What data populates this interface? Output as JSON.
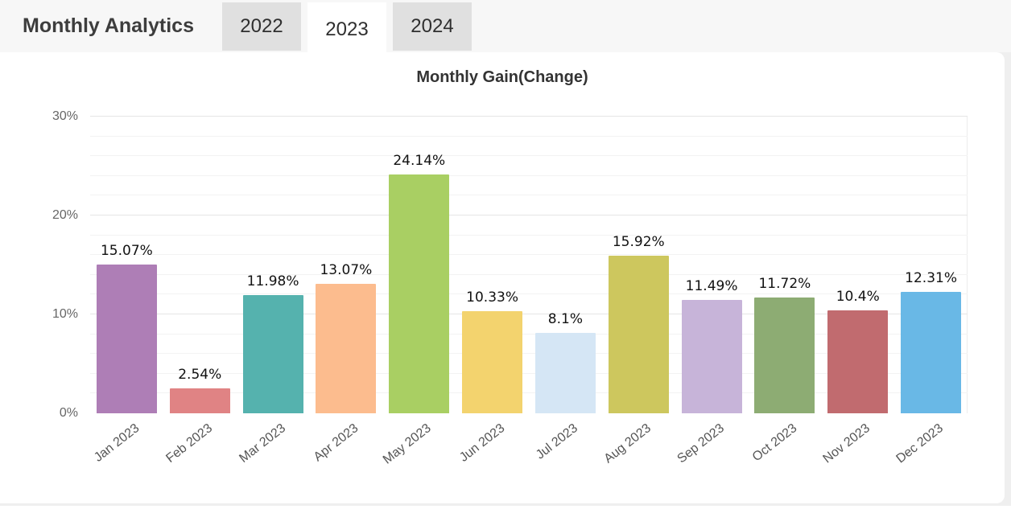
{
  "header": {
    "title": "Monthly Analytics",
    "tabs": [
      {
        "label": "2022",
        "active": false
      },
      {
        "label": "2023",
        "active": true
      },
      {
        "label": "2024",
        "active": false
      }
    ]
  },
  "chart_data": {
    "type": "bar",
    "title": "Monthly Gain(Change)",
    "categories": [
      "Jan 2023",
      "Feb 2023",
      "Mar 2023",
      "Apr 2023",
      "May 2023",
      "Jun 2023",
      "Jul 2023",
      "Aug 2023",
      "Sep 2023",
      "Oct 2023",
      "Nov 2023",
      "Dec 2023"
    ],
    "values": [
      15.07,
      2.54,
      11.98,
      13.07,
      24.14,
      10.33,
      8.1,
      15.92,
      11.49,
      11.72,
      10.4,
      12.31
    ],
    "value_labels": [
      "15.07%",
      "2.54%",
      "11.98%",
      "13.07%",
      "24.14%",
      "10.33%",
      "8.1%",
      "15.92%",
      "11.49%",
      "11.72%",
      "10.4%",
      "12.31%"
    ],
    "bar_colors": [
      "#ae7eb6",
      "#e08384",
      "#55b2ae",
      "#fcbc8e",
      "#a9cf63",
      "#f3d36e",
      "#d5e6f5",
      "#cdc75e",
      "#c7b4d9",
      "#8dac73",
      "#c16b6f",
      "#69b8e6"
    ],
    "xlabel": "",
    "ylabel": "",
    "ylim": [
      0,
      30
    ],
    "ytick_values": [
      0,
      10,
      20,
      30
    ],
    "ytick_labels": [
      "0%",
      "10%",
      "20%",
      "30%"
    ],
    "minor_grid_step_pct": 2,
    "grid": "horizontal",
    "legend": "none",
    "x_label_rotation_deg": -38
  }
}
